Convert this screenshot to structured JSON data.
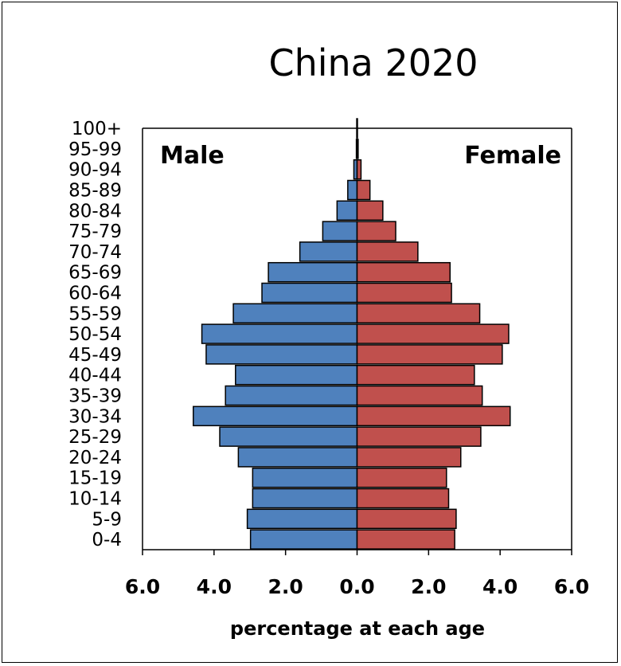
{
  "chart_data": {
    "type": "bar",
    "orientation": "horizontal",
    "title": "China 2020",
    "xlabel": "percentage at each age",
    "ylabel": "",
    "xlim": [
      -6,
      6
    ],
    "xticks": [
      "6.0",
      "4.0",
      "2.0",
      "0.0",
      "2.0",
      "4.0",
      "6.0"
    ],
    "grid": false,
    "side_labels": {
      "left": "Male",
      "right": "Female"
    },
    "categories": [
      "0-4",
      "5-9",
      "10-14",
      "15-19",
      "20-24",
      "25-29",
      "30-34",
      "35-39",
      "40-44",
      "45-49",
      "50-54",
      "55-59",
      "60-64",
      "65-69",
      "70-74",
      "75-79",
      "80-84",
      "85-89",
      "90-94",
      "95-99",
      "100+"
    ],
    "series": [
      {
        "name": "Male",
        "color": "#4f81bd",
        "values": [
          2.98,
          3.07,
          2.92,
          2.92,
          3.32,
          3.84,
          4.58,
          3.68,
          3.4,
          4.22,
          4.34,
          3.46,
          2.66,
          2.48,
          1.6,
          0.96,
          0.56,
          0.26,
          0.09,
          0.02,
          0.01
        ]
      },
      {
        "name": "Female",
        "color": "#c0504d",
        "values": [
          2.73,
          2.77,
          2.56,
          2.5,
          2.9,
          3.46,
          4.28,
          3.5,
          3.28,
          4.06,
          4.24,
          3.43,
          2.64,
          2.6,
          1.7,
          1.08,
          0.72,
          0.36,
          0.11,
          0.03,
          0.01
        ]
      }
    ]
  }
}
